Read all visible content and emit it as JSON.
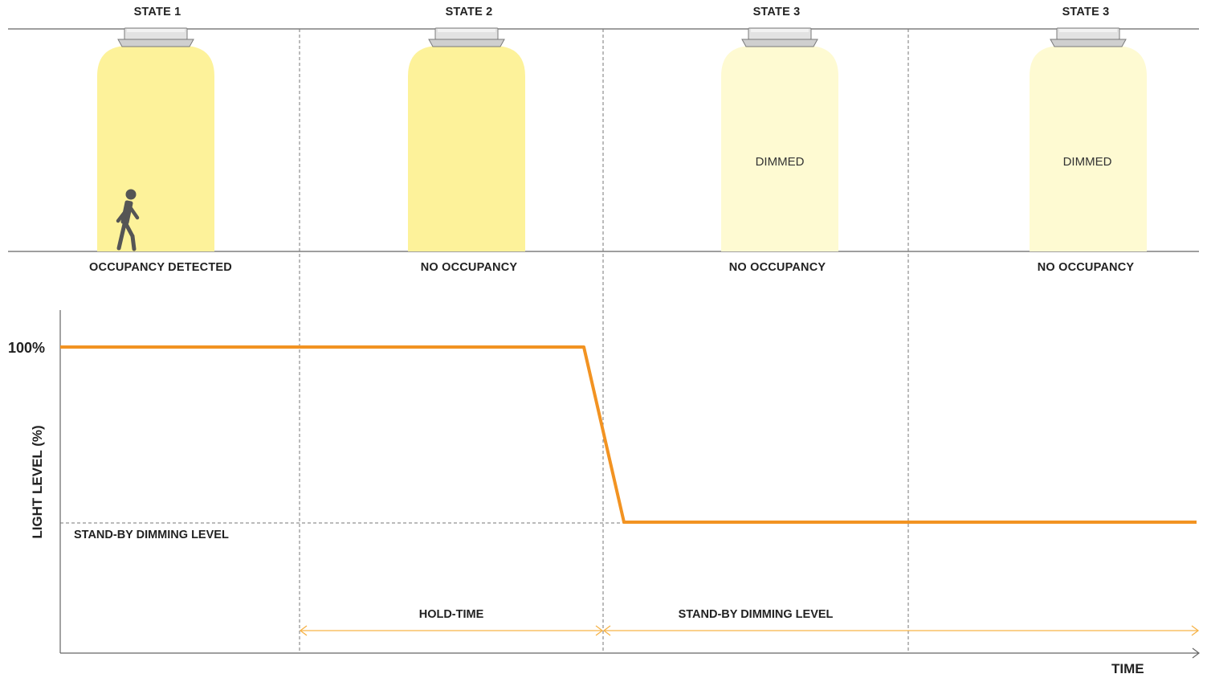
{
  "states": [
    {
      "title": "STATE 1",
      "occupancy": "OCCUPANCY DETECTED",
      "light": "full",
      "dim_text": "",
      "person": true
    },
    {
      "title": "STATE 2",
      "occupancy": "NO OCCUPANCY",
      "light": "full",
      "dim_text": "",
      "person": false
    },
    {
      "title": "STATE 3",
      "occupancy": "NO OCCUPANCY",
      "light": "dimmed",
      "dim_text": "DIMMED",
      "person": false
    },
    {
      "title": "STATE 3",
      "occupancy": "NO OCCUPANCY",
      "light": "dimmed",
      "dim_text": "DIMMED",
      "person": false
    }
  ],
  "chart": {
    "y_axis_label": "LIGHT LEVEL (%)",
    "x_axis_label": "TIME",
    "y_tick_label": "100%",
    "standby_level_label": "STAND-BY DIMMING LEVEL",
    "spans": [
      {
        "label": "HOLD-TIME"
      },
      {
        "label": "STAND-BY DIMMING LEVEL"
      }
    ]
  },
  "colors": {
    "light_full": "#fdf29a",
    "light_dimmed": "#fefad2",
    "curve": "#f29322",
    "span_arrow": "#f6b348",
    "guide": "#777777",
    "fixture": "#e2e2e2"
  },
  "icons": {
    "fixture": "ceiling-light-fixture-icon",
    "person": "walking-person-icon"
  }
}
